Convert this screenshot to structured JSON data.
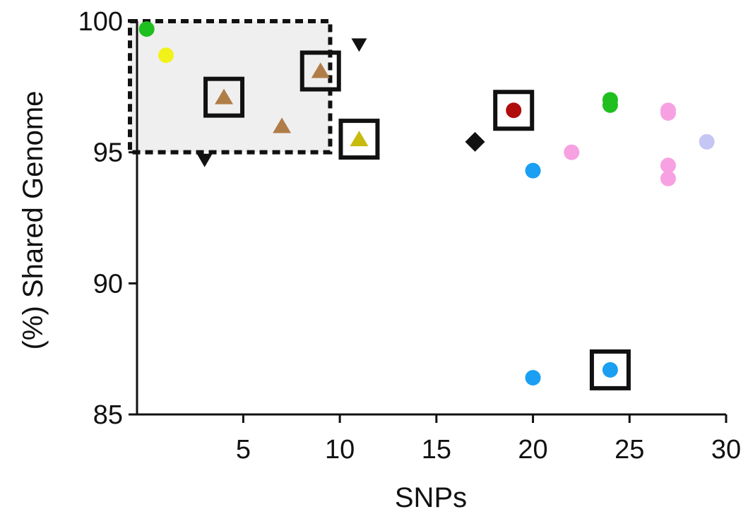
{
  "chart_data": {
    "type": "scatter",
    "title": "",
    "xlabel": "SNPs",
    "ylabel": "(%) Shared Genome",
    "xlim": [
      -0.5,
      30
    ],
    "ylim": [
      85,
      100
    ],
    "xticks": [
      5,
      10,
      15,
      20,
      25,
      30
    ],
    "yticks": [
      85,
      90,
      95,
      100
    ],
    "xtick_labels": [
      "5",
      "10",
      "15",
      "20",
      "25",
      "30"
    ],
    "ytick_labels": [
      "85",
      "90",
      "95",
      "100"
    ],
    "grid": false,
    "legend": false,
    "highlight_region": {
      "x": [
        -0.5,
        9.5
      ],
      "y": [
        95,
        100
      ],
      "style": "dashed box, light gray fill"
    },
    "points": [
      {
        "x": 0,
        "y": 99.7,
        "shape": "circle",
        "color": "#1fbf1f",
        "boxed": false
      },
      {
        "x": 1,
        "y": 98.7,
        "shape": "circle",
        "color": "#f2f21a",
        "boxed": false
      },
      {
        "x": 3,
        "y": 94.7,
        "shape": "triangle-down",
        "color": "#111111",
        "boxed": false
      },
      {
        "x": 4,
        "y": 97.1,
        "shape": "triangle-up",
        "color": "#b07d48",
        "boxed": true
      },
      {
        "x": 7,
        "y": 96.0,
        "shape": "triangle-up",
        "color": "#b07d48",
        "boxed": false
      },
      {
        "x": 9,
        "y": 98.1,
        "shape": "triangle-up",
        "color": "#b07d48",
        "boxed": true
      },
      {
        "x": 11,
        "y": 99.1,
        "shape": "triangle-down",
        "color": "#111111",
        "boxed": false
      },
      {
        "x": 11,
        "y": 95.5,
        "shape": "triangle-up",
        "color": "#c8bb0e",
        "boxed": true
      },
      {
        "x": 17,
        "y": 95.4,
        "shape": "diamond",
        "color": "#111111",
        "boxed": false
      },
      {
        "x": 19,
        "y": 96.6,
        "shape": "circle",
        "color": "#b00d0d",
        "boxed": true
      },
      {
        "x": 20,
        "y": 94.3,
        "shape": "circle",
        "color": "#1a9ff2",
        "boxed": false
      },
      {
        "x": 20,
        "y": 86.4,
        "shape": "circle",
        "color": "#1a9ff2",
        "boxed": false
      },
      {
        "x": 22,
        "y": 95.0,
        "shape": "circle",
        "color": "#f7a1e2",
        "boxed": false
      },
      {
        "x": 24,
        "y": 97.0,
        "shape": "circle",
        "color": "#1fbf1f",
        "boxed": false
      },
      {
        "x": 24,
        "y": 96.8,
        "shape": "circle",
        "color": "#1fbf1f",
        "boxed": false
      },
      {
        "x": 24,
        "y": 86.7,
        "shape": "circle",
        "color": "#1a9ff2",
        "boxed": true
      },
      {
        "x": 27,
        "y": 96.6,
        "shape": "circle",
        "color": "#f7a1e2",
        "boxed": false
      },
      {
        "x": 27,
        "y": 96.5,
        "shape": "circle",
        "color": "#f7a1e2",
        "boxed": false
      },
      {
        "x": 27,
        "y": 94.5,
        "shape": "circle",
        "color": "#f7a1e2",
        "boxed": false
      },
      {
        "x": 27,
        "y": 94.0,
        "shape": "circle",
        "color": "#f7a1e2",
        "boxed": false
      },
      {
        "x": 29,
        "y": 95.4,
        "shape": "circle",
        "color": "#c6c6f4",
        "boxed": false
      }
    ]
  }
}
